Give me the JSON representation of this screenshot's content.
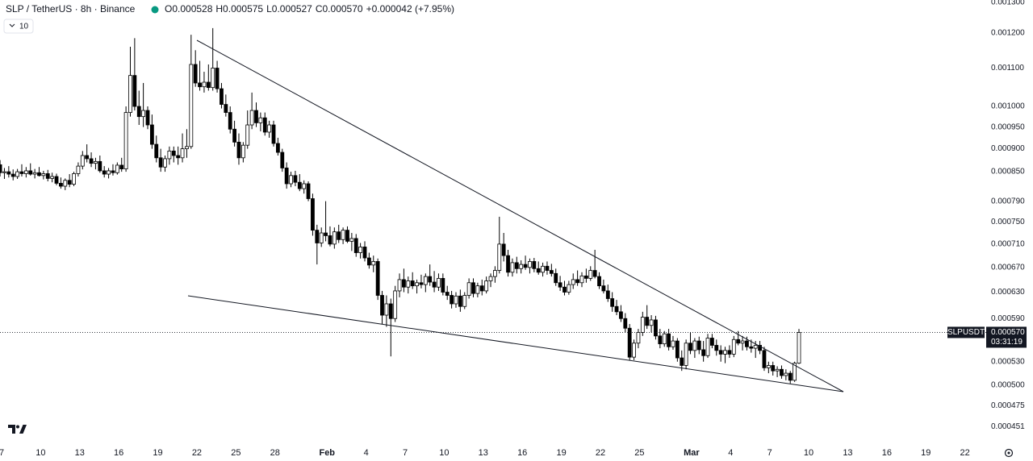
{
  "chart_data": {
    "type": "candlestick",
    "title": "SLP / TetherUS · 8h · Binance",
    "legend_values": [
      "O0.000528",
      "H0.000575",
      "L0.000527",
      "C0.000570",
      "+0.000042 (+7.95%)"
    ],
    "indicator_count": "10",
    "log_scale": true,
    "grid": false,
    "up_color": "#ffffff",
    "down_color": "#000000",
    "outline_color": "#000000",
    "ylim": [
      0.000437,
      0.001303
    ],
    "yticks": [
      {
        "value": 0.0013,
        "label": "0.001300"
      },
      {
        "value": 0.0012,
        "label": "0.001200"
      },
      {
        "value": 0.0011,
        "label": "0.001100"
      },
      {
        "value": 0.001,
        "label": "0.001000"
      },
      {
        "value": 0.00095,
        "label": "0.000950"
      },
      {
        "value": 0.0009,
        "label": "0.000900"
      },
      {
        "value": 0.00085,
        "label": "0.000850"
      },
      {
        "value": 0.00079,
        "label": "0.000790"
      },
      {
        "value": 0.00075,
        "label": "0.000750"
      },
      {
        "value": 0.00071,
        "label": "0.000710"
      },
      {
        "value": 0.00067,
        "label": "0.000670"
      },
      {
        "value": 0.00063,
        "label": "0.000630"
      },
      {
        "value": 0.00059,
        "label": "0.000590"
      },
      {
        "value": 0.00053,
        "label": "0.000530"
      },
      {
        "value": 0.0005,
        "label": "0.000500"
      },
      {
        "value": 0.000475,
        "label": "0.000475"
      },
      {
        "value": 0.000451,
        "label": "0.000451"
      }
    ],
    "last_price": {
      "value": 0.00057,
      "label": "0.000570"
    },
    "symbol_tag": "SLPUSDT",
    "countdown": "03:31:19",
    "x_labels": [
      "7",
      "10",
      "13",
      "16",
      "19",
      "22",
      "25",
      "28",
      "Feb",
      "4",
      "7",
      "10",
      "13",
      "16",
      "19",
      "22",
      "25",
      "Mar",
      "4",
      "7",
      "10",
      "13",
      "16",
      "19",
      "22"
    ],
    "candles": [
      [
        0.000885,
        0.000895,
        0.00086,
        0.000865
      ],
      [
        0.000865,
        0.000875,
        0.00084,
        0.000848
      ],
      [
        0.000848,
        0.000858,
        0.000835,
        0.00085
      ],
      [
        0.00085,
        0.000862,
        0.000838,
        0.000845
      ],
      [
        0.000845,
        0.000855,
        0.000832,
        0.00084
      ],
      [
        0.00084,
        0.000856,
        0.000835,
        0.00085
      ],
      [
        0.00085,
        0.000866,
        0.00084,
        0.000846
      ],
      [
        0.000846,
        0.00086,
        0.000838,
        0.000852
      ],
      [
        0.000852,
        0.000868,
        0.000842,
        0.000845
      ],
      [
        0.000845,
        0.000856,
        0.000836,
        0.000848
      ],
      [
        0.000848,
        0.00086,
        0.00084,
        0.000842
      ],
      [
        0.000842,
        0.000852,
        0.000834,
        0.000846
      ],
      [
        0.000846,
        0.000854,
        0.00083,
        0.000836
      ],
      [
        0.000836,
        0.000848,
        0.000828,
        0.00084
      ],
      [
        0.00084,
        0.000846,
        0.000822,
        0.000826
      ],
      [
        0.000826,
        0.000838,
        0.000815,
        0.00082
      ],
      [
        0.00082,
        0.000836,
        0.000812,
        0.000832
      ],
      [
        0.000832,
        0.000845,
        0.000818,
        0.000824
      ],
      [
        0.000824,
        0.00085,
        0.00082,
        0.000846
      ],
      [
        0.000846,
        0.00087,
        0.00084,
        0.000862
      ],
      [
        0.000862,
        0.000895,
        0.000855,
        0.000885
      ],
      [
        0.000885,
        0.00091,
        0.00087,
        0.000878
      ],
      [
        0.000878,
        0.000892,
        0.00086,
        0.000868
      ],
      [
        0.000868,
        0.00088,
        0.000855,
        0.000872
      ],
      [
        0.000872,
        0.000885,
        0.000848,
        0.000852
      ],
      [
        0.000852,
        0.000862,
        0.000838,
        0.000845
      ],
      [
        0.000845,
        0.000858,
        0.000836,
        0.000852
      ],
      [
        0.000852,
        0.000866,
        0.000842,
        0.000848
      ],
      [
        0.000848,
        0.00087,
        0.000844,
        0.000864
      ],
      [
        0.000864,
        0.00088,
        0.00085,
        0.000856
      ],
      [
        0.000856,
        0.001,
        0.00085,
        0.000985
      ],
      [
        0.000985,
        0.00116,
        0.000975,
        0.00108
      ],
      [
        0.00108,
        0.001185,
        0.00099,
        0.001
      ],
      [
        0.001,
        0.00104,
        0.000955,
        0.000975
      ],
      [
        0.000975,
        0.00106,
        0.00095,
        0.00099
      ],
      [
        0.00099,
        0.001,
        0.000945,
        0.000955
      ],
      [
        0.000955,
        0.00098,
        0.0009,
        0.00091
      ],
      [
        0.00091,
        0.00093,
        0.00087,
        0.00088
      ],
      [
        0.00088,
        0.0009,
        0.00085,
        0.00086
      ],
      [
        0.00086,
        0.000885,
        0.00085,
        0.000878
      ],
      [
        0.000878,
        0.000905,
        0.000865,
        0.000895
      ],
      [
        0.000895,
        0.000905,
        0.00087,
        0.000885
      ],
      [
        0.000885,
        0.000905,
        0.000865,
        0.00088
      ],
      [
        0.00088,
        0.000935,
        0.00087,
        0.0009
      ],
      [
        0.0009,
        0.000945,
        0.00088,
        0.000905
      ],
      [
        0.000905,
        0.001195,
        0.0009,
        0.00111
      ],
      [
        0.00111,
        0.00115,
        0.00105,
        0.00106
      ],
      [
        0.00106,
        0.00112,
        0.00104,
        0.00105
      ],
      [
        0.00105,
        0.00109,
        0.001035,
        0.001062
      ],
      [
        0.001062,
        0.00111,
        0.00104,
        0.001048
      ],
      [
        0.001048,
        0.001215,
        0.00104,
        0.0011
      ],
      [
        0.0011,
        0.00112,
        0.001035,
        0.001045
      ],
      [
        0.001045,
        0.00106,
        0.000995,
        0.001005
      ],
      [
        0.001005,
        0.00103,
        0.000975,
        0.000985
      ],
      [
        0.000985,
        0.001,
        0.000935,
        0.000945
      ],
      [
        0.000945,
        0.000965,
        0.000905,
        0.000915
      ],
      [
        0.000915,
        0.000935,
        0.000865,
        0.00088
      ],
      [
        0.00088,
        0.000915,
        0.00087,
        0.000908
      ],
      [
        0.000908,
        0.00099,
        0.0009,
        0.000955
      ],
      [
        0.000955,
        0.001035,
        0.000945,
        0.00099
      ],
      [
        0.00099,
        0.00101,
        0.00095,
        0.00096
      ],
      [
        0.00096,
        0.000985,
        0.00094,
        0.000972
      ],
      [
        0.000972,
        0.000985,
        0.00093,
        0.000938
      ],
      [
        0.000938,
        0.000965,
        0.000925,
        0.000955
      ],
      [
        0.000955,
        0.000965,
        0.000905,
        0.000912
      ],
      [
        0.000912,
        0.000925,
        0.000885,
        0.000892
      ],
      [
        0.000892,
        0.0009,
        0.00085,
        0.000858
      ],
      [
        0.000858,
        0.00087,
        0.000815,
        0.000825
      ],
      [
        0.000825,
        0.00085,
        0.000818,
        0.000842
      ],
      [
        0.000842,
        0.000852,
        0.00082,
        0.000828
      ],
      [
        0.000828,
        0.000845,
        0.00081,
        0.000815
      ],
      [
        0.000815,
        0.000832,
        0.000805,
        0.000825
      ],
      [
        0.000825,
        0.00083,
        0.00079,
        0.000795
      ],
      [
        0.000795,
        0.000805,
        0.000725,
        0.000735
      ],
      [
        0.000735,
        0.000745,
        0.000675,
        0.000712
      ],
      [
        0.000712,
        0.00074,
        0.000705,
        0.00073
      ],
      [
        0.00073,
        0.00079,
        0.000715,
        0.000725
      ],
      [
        0.000725,
        0.000742,
        0.000706,
        0.00071
      ],
      [
        0.00071,
        0.00074,
        0.000702,
        0.000732
      ],
      [
        0.000732,
        0.000745,
        0.000712,
        0.000718
      ],
      [
        0.000718,
        0.00074,
        0.00071,
        0.000735
      ],
      [
        0.000735,
        0.000742,
        0.000712,
        0.000715
      ],
      [
        0.000715,
        0.00073,
        0.000698,
        0.00072
      ],
      [
        0.00072,
        0.000728,
        0.000688,
        0.000695
      ],
      [
        0.000695,
        0.000712,
        0.000685,
        0.000705
      ],
      [
        0.000705,
        0.000715,
        0.00068,
        0.000686
      ],
      [
        0.000686,
        0.000695,
        0.000668,
        0.000674
      ],
      [
        0.000674,
        0.00069,
        0.000662,
        0.00068
      ],
      [
        0.00068,
        0.000685,
        0.000618,
        0.000625
      ],
      [
        0.000625,
        0.000632,
        0.000582,
        0.000595
      ],
      [
        0.000595,
        0.000625,
        0.000578,
        0.000612
      ],
      [
        0.000612,
        0.00062,
        0.000537,
        0.00059
      ],
      [
        0.00059,
        0.00064,
        0.000585,
        0.000632
      ],
      [
        0.000632,
        0.00066,
        0.000622,
        0.00065
      ],
      [
        0.00065,
        0.000668,
        0.00063,
        0.000638
      ],
      [
        0.000638,
        0.000655,
        0.000628,
        0.000648
      ],
      [
        0.000648,
        0.000662,
        0.000635,
        0.00064
      ],
      [
        0.00064,
        0.00065,
        0.000628,
        0.000645
      ],
      [
        0.000645,
        0.000658,
        0.000636,
        0.000642
      ],
      [
        0.000642,
        0.00066,
        0.00063,
        0.000655
      ],
      [
        0.000655,
        0.000675,
        0.00064,
        0.000646
      ],
      [
        0.000646,
        0.000664,
        0.00063,
        0.000638
      ],
      [
        0.000638,
        0.00066,
        0.000632,
        0.000652
      ],
      [
        0.000652,
        0.00066,
        0.000625,
        0.00063
      ],
      [
        0.00063,
        0.00064,
        0.000618,
        0.000625
      ],
      [
        0.000625,
        0.000632,
        0.000605,
        0.000612
      ],
      [
        0.000612,
        0.00063,
        0.000606,
        0.000624
      ],
      [
        0.000624,
        0.000634,
        0.0006,
        0.000608
      ],
      [
        0.000608,
        0.00063,
        0.000604,
        0.000625
      ],
      [
        0.000625,
        0.000652,
        0.00062,
        0.000645
      ],
      [
        0.000645,
        0.000652,
        0.000622,
        0.000628
      ],
      [
        0.000628,
        0.000645,
        0.000622,
        0.00064
      ],
      [
        0.00064,
        0.00065,
        0.000625,
        0.000632
      ],
      [
        0.000632,
        0.000655,
        0.000628,
        0.000648
      ],
      [
        0.000648,
        0.00066,
        0.000638,
        0.000655
      ],
      [
        0.000655,
        0.000672,
        0.000645,
        0.000665
      ],
      [
        0.000665,
        0.00076,
        0.00066,
        0.00071
      ],
      [
        0.00071,
        0.00073,
        0.00068,
        0.00069
      ],
      [
        0.00069,
        0.0007,
        0.000655,
        0.000662
      ],
      [
        0.000662,
        0.000685,
        0.000655,
        0.000678
      ],
      [
        0.000678,
        0.000688,
        0.00066,
        0.000668
      ],
      [
        0.000668,
        0.000682,
        0.00066,
        0.000675
      ],
      [
        0.000675,
        0.00069,
        0.000666,
        0.00067
      ],
      [
        0.00067,
        0.000685,
        0.00066,
        0.00068
      ],
      [
        0.00068,
        0.000686,
        0.000662,
        0.000668
      ],
      [
        0.000668,
        0.00068,
        0.000658,
        0.000662
      ],
      [
        0.000662,
        0.000678,
        0.000655,
        0.000672
      ],
      [
        0.000672,
        0.00068,
        0.000658,
        0.000665
      ],
      [
        0.000665,
        0.000676,
        0.000655,
        0.00066
      ],
      [
        0.00066,
        0.000668,
        0.00064,
        0.000645
      ],
      [
        0.000645,
        0.000656,
        0.000632,
        0.000638
      ],
      [
        0.000638,
        0.000648,
        0.000625,
        0.00063
      ],
      [
        0.00063,
        0.000648,
        0.000626,
        0.000642
      ],
      [
        0.000642,
        0.00066,
        0.000635,
        0.00065
      ],
      [
        0.00065,
        0.000665,
        0.00064,
        0.000645
      ],
      [
        0.000645,
        0.000662,
        0.000638,
        0.000656
      ],
      [
        0.000656,
        0.000668,
        0.000645,
        0.000652
      ],
      [
        0.000652,
        0.000672,
        0.000648,
        0.000665
      ],
      [
        0.000665,
        0.0007,
        0.000652,
        0.000655
      ],
      [
        0.000655,
        0.000662,
        0.000635,
        0.00064
      ],
      [
        0.00064,
        0.00065,
        0.000628,
        0.000632
      ],
      [
        0.000632,
        0.000642,
        0.000615,
        0.00062
      ],
      [
        0.00062,
        0.00063,
        0.0006,
        0.000608
      ],
      [
        0.000608,
        0.000618,
        0.000595,
        0.0006
      ],
      [
        0.0006,
        0.00061,
        0.000585,
        0.00059
      ],
      [
        0.00059,
        0.000598,
        0.00057,
        0.000576
      ],
      [
        0.000576,
        0.000582,
        0.000532,
        0.000536
      ],
      [
        0.000536,
        0.00056,
        0.000532,
        0.000555
      ],
      [
        0.000555,
        0.000575,
        0.000548,
        0.00057
      ],
      [
        0.00057,
        0.0006,
        0.000565,
        0.000592
      ],
      [
        0.000592,
        0.00061,
        0.000575,
        0.00058
      ],
      [
        0.00058,
        0.000595,
        0.00057,
        0.000588
      ],
      [
        0.000588,
        0.000594,
        0.00056,
        0.000565
      ],
      [
        0.000565,
        0.000575,
        0.000548,
        0.000554
      ],
      [
        0.000554,
        0.000572,
        0.00055,
        0.000568
      ],
      [
        0.000568,
        0.000575,
        0.000545,
        0.00055
      ],
      [
        0.00055,
        0.000565,
        0.000546,
        0.000558
      ],
      [
        0.000558,
        0.000562,
        0.00053,
        0.000535
      ],
      [
        0.000535,
        0.000545,
        0.000518,
        0.000525
      ],
      [
        0.000525,
        0.00056,
        0.00052,
        0.000555
      ],
      [
        0.000555,
        0.00057,
        0.00054,
        0.000545
      ],
      [
        0.000545,
        0.000562,
        0.000535,
        0.000558
      ],
      [
        0.000558,
        0.000564,
        0.00054,
        0.000546
      ],
      [
        0.000546,
        0.000558,
        0.00053,
        0.000538
      ],
      [
        0.000538,
        0.000568,
        0.000535,
        0.000562
      ],
      [
        0.000562,
        0.000568,
        0.000548,
        0.000552
      ],
      [
        0.000552,
        0.00056,
        0.000538,
        0.000545
      ],
      [
        0.000545,
        0.000552,
        0.00053,
        0.00054
      ],
      [
        0.00054,
        0.00055,
        0.000528,
        0.000545
      ],
      [
        0.000545,
        0.000552,
        0.000535,
        0.00054
      ],
      [
        0.00054,
        0.000565,
        0.000536,
        0.00056
      ],
      [
        0.00056,
        0.000572,
        0.000552,
        0.000555
      ],
      [
        0.000555,
        0.000565,
        0.000545,
        0.000558
      ],
      [
        0.000558,
        0.000564,
        0.000545,
        0.00055
      ],
      [
        0.00055,
        0.00056,
        0.000542,
        0.000548
      ],
      [
        0.000548,
        0.000558,
        0.000535,
        0.000552
      ],
      [
        0.000552,
        0.000558,
        0.00054,
        0.000545
      ],
      [
        0.000545,
        0.00055,
        0.000518,
        0.000522
      ],
      [
        0.000522,
        0.00053,
        0.000515,
        0.000525
      ],
      [
        0.000525,
        0.00053,
        0.000512,
        0.000518
      ],
      [
        0.000518,
        0.000524,
        0.00051,
        0.00052
      ],
      [
        0.00052,
        0.000525,
        0.000508,
        0.000512
      ],
      [
        0.000512,
        0.00052,
        0.000506,
        0.000515
      ],
      [
        0.000515,
        0.000518,
        0.000502,
        0.000506
      ],
      [
        0.000506,
        0.00053,
        0.000504,
        0.000528
      ],
      [
        0.000528,
        0.000575,
        0.000527,
        0.00057
      ]
    ]
  }
}
